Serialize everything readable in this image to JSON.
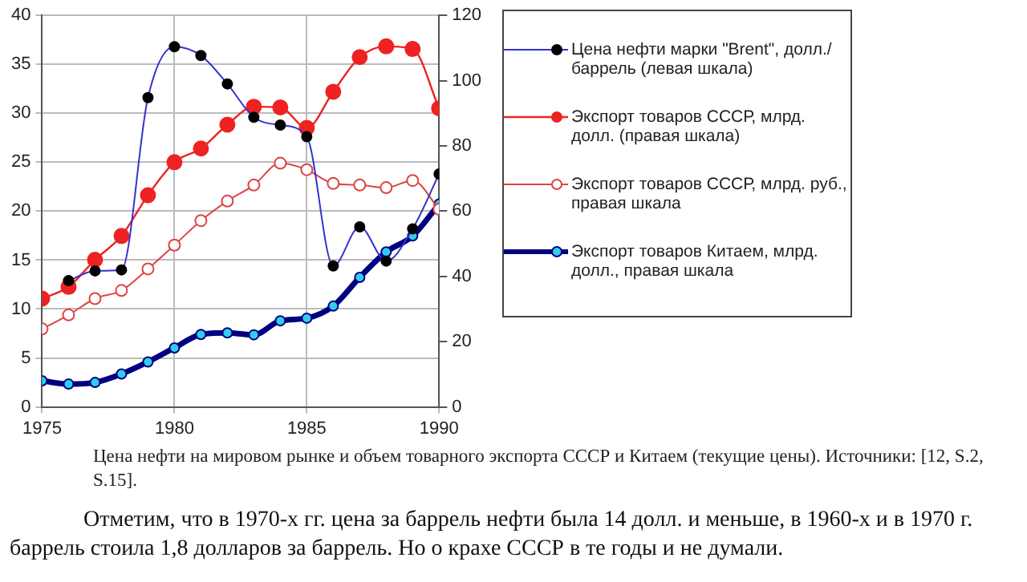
{
  "chart_data": {
    "type": "line",
    "x": [
      1975,
      1976,
      1977,
      1978,
      1979,
      1980,
      1981,
      1982,
      1983,
      1984,
      1985,
      1986,
      1987,
      1988,
      1989,
      1990
    ],
    "series": [
      {
        "name": "Цена нефти марки \"Brent\", долл./баррель (левая шкала)",
        "color": "#3333cc",
        "values": [
          null,
          12.9,
          13.9,
          14,
          31.6,
          36.8,
          35.9,
          33,
          29.6,
          28.8,
          27.6,
          14.4,
          18.4,
          14.9,
          18.2,
          23.8
        ]
      },
      {
        "name": "Экспорт товаров СССР, млрд. долл. (правая шкала)",
        "color": "#ee2222",
        "axis": "y2",
        "values": [
          33.2,
          36.8,
          45.1,
          52.4,
          64.9,
          75,
          79.2,
          86.5,
          92,
          91.8,
          85.5,
          96.6,
          107.2,
          110.5,
          109.7,
          91.5
        ]
      },
      {
        "name": "Экспорт товаров СССР, млрд. руб., правая шкала",
        "color": "#dd4444",
        "axis": "y2",
        "values": [
          23.9,
          28.2,
          33.2,
          35.7,
          42.3,
          49.6,
          57.1,
          63.1,
          68,
          74.7,
          72.7,
          68.5,
          68,
          67.2,
          69.4,
          60.6
        ]
      },
      {
        "name": "Экспорт товаров Китаем, млрд. долл., правая шкала",
        "color": "#000080",
        "axis": "y2",
        "values": [
          8,
          7,
          7.5,
          10.1,
          13.8,
          18.1,
          22.2,
          22.7,
          22.1,
          26.4,
          27.2,
          30.9,
          39.7,
          47.5,
          52.4,
          62.2
        ]
      }
    ],
    "xlim": [
      1975,
      1990
    ],
    "xticks": [
      1975,
      1980,
      1985,
      1990
    ],
    "ylim": [
      0,
      40
    ],
    "yticks": [
      0,
      5,
      10,
      15,
      20,
      25,
      30,
      35,
      40
    ],
    "y2lim": [
      0,
      120
    ],
    "y2ticks": [
      0,
      20,
      40,
      60,
      80,
      100,
      120
    ],
    "grid": true,
    "legend": "right",
    "marker": "circle",
    "line_style": "solid",
    "annotations": [
      "Цена нефти на мировом рынке и объем товарного экспорта СССР и Китаем (текущие цены). Источники: [12, S.2, S.15].",
      "Отметим, что в 1970-х гг. цена за баррель нефти была 14 долл. и меньше, в 1960-х и в 1970 г. баррель стоила 1,8 долларов за баррель. Но о крахе СССР в те годы и не думали."
    ]
  }
}
